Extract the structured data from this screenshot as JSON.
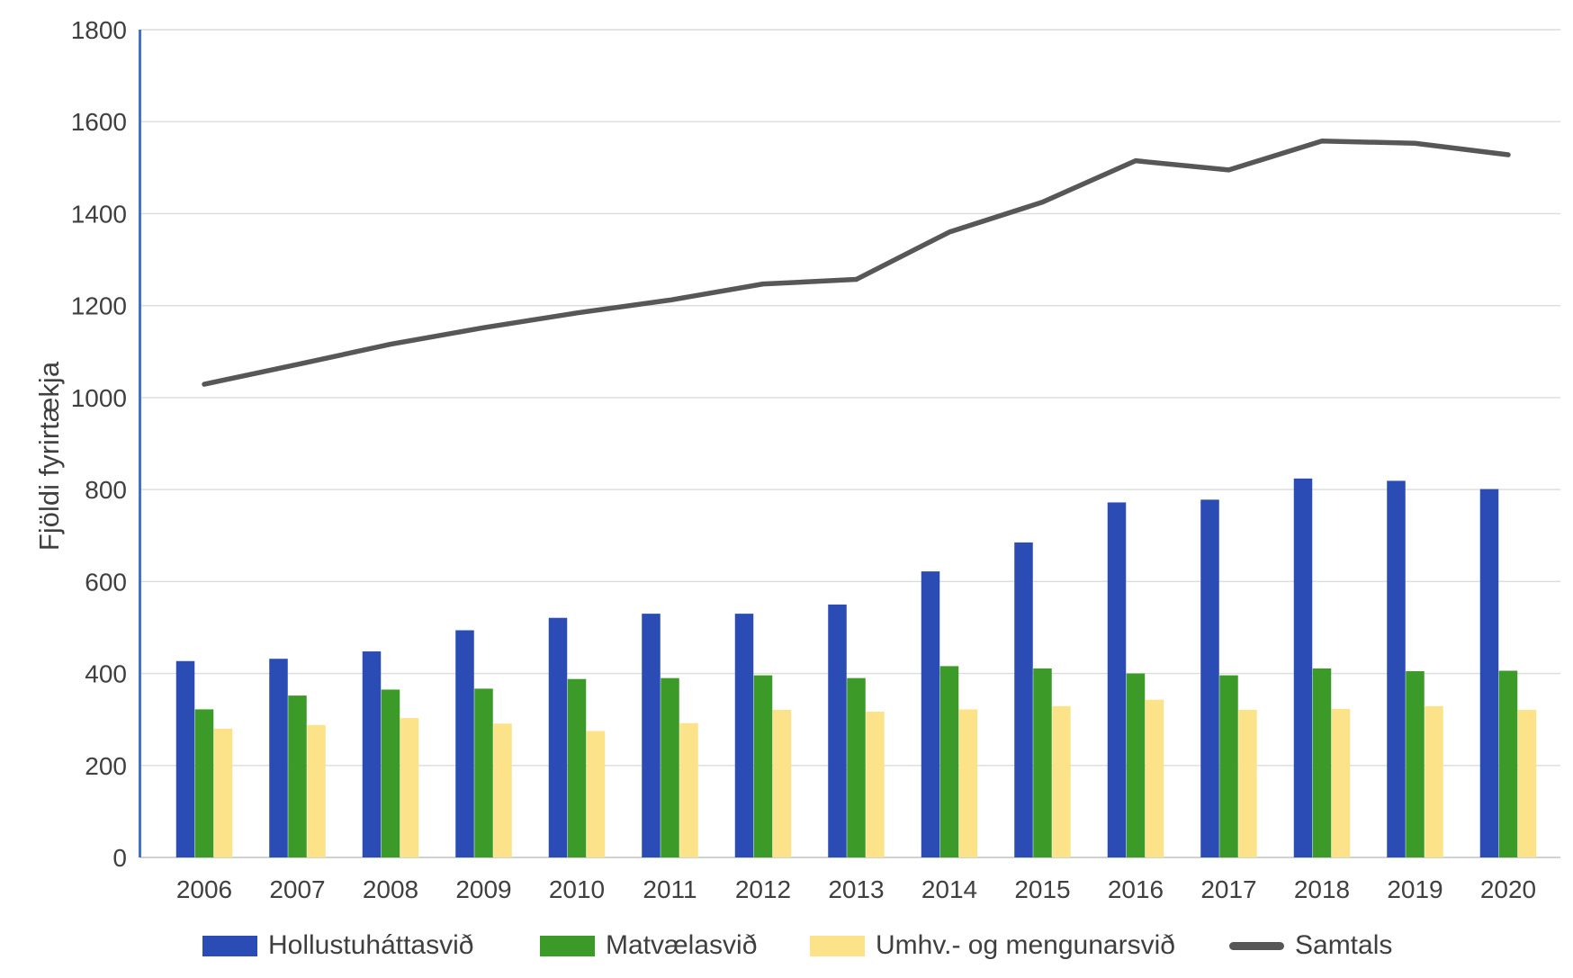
{
  "chart_data": {
    "type": "bar",
    "title": "",
    "xlabel": "",
    "ylabel": "Fjöldi fyrirtækja",
    "ylim": [
      0,
      1800
    ],
    "ytick_step": 200,
    "grid": true,
    "legend_position": "bottom",
    "categories": [
      "2006",
      "2007",
      "2008",
      "2009",
      "2010",
      "2011",
      "2012",
      "2013",
      "2014",
      "2015",
      "2016",
      "2017",
      "2018",
      "2019",
      "2020"
    ],
    "series": [
      {
        "name": "Hollustuháttasvið",
        "type": "bar",
        "color": "#2a4cb4",
        "values": [
          427,
          432,
          448,
          494,
          521,
          530,
          530,
          550,
          622,
          685,
          772,
          778,
          824,
          819,
          801
        ]
      },
      {
        "name": "Matvælasvið",
        "type": "bar",
        "color": "#3c9a28",
        "values": [
          322,
          352,
          365,
          367,
          388,
          390,
          396,
          390,
          416,
          411,
          400,
          396,
          411,
          405,
          406
        ]
      },
      {
        "name": "Umhv.- og mengunarsvið",
        "type": "bar",
        "color": "#fce38a",
        "values": [
          280,
          288,
          303,
          291,
          275,
          292,
          321,
          317,
          322,
          329,
          343,
          321,
          323,
          329,
          321
        ]
      },
      {
        "name": "Samtals",
        "type": "line",
        "color": "#575757",
        "values": [
          1029,
          1072,
          1116,
          1152,
          1184,
          1212,
          1247,
          1257,
          1360,
          1425,
          1515,
          1495,
          1558,
          1553,
          1528
        ]
      }
    ]
  },
  "colors": {
    "gridline": "#dcdcdc",
    "x_axis_line": "#c2c2c2",
    "y_axis_line": "#4472c4",
    "tick_text": "#404040"
  }
}
